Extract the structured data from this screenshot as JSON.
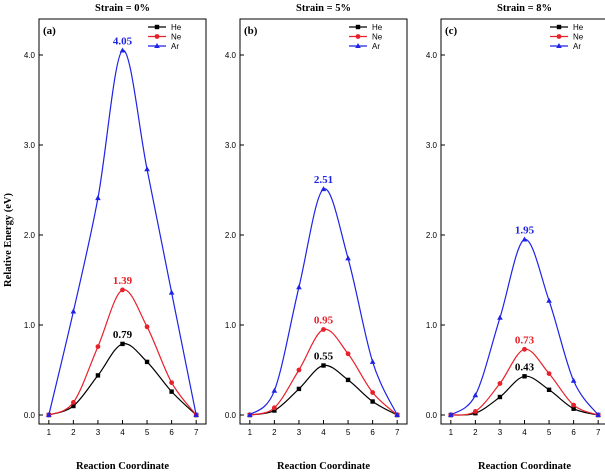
{
  "figure": {
    "ylabel": "Relative Energy (eV)",
    "xlabel": "Reaction Coordinate"
  },
  "chart_data": [
    {
      "type": "line",
      "title": "Strain = 0%",
      "panel_label": "(a)",
      "xlabel": "Reaction Coordinate",
      "ylabel": "Relative Energy (eV)",
      "xlim": [
        0.6,
        7.4
      ],
      "ylim": [
        -0.1,
        4.4
      ],
      "x_ticks": [
        1,
        2,
        3,
        4,
        5,
        6,
        7
      ],
      "y_ticks": [
        "0.0",
        "1.0",
        "2.0",
        "3.0",
        "4.0"
      ],
      "legend_position": "top-right",
      "x": [
        1,
        2,
        3,
        4,
        5,
        6,
        7
      ],
      "series": [
        {
          "name": "He",
          "color": "#000000",
          "marker": "square",
          "values": [
            0,
            0.1,
            0.44,
            0.79,
            0.59,
            0.26,
            0
          ]
        },
        {
          "name": "Ne",
          "color": "#e8202a",
          "marker": "circle",
          "values": [
            0,
            0.14,
            0.76,
            1.39,
            0.98,
            0.36,
            0
          ]
        },
        {
          "name": "Ar",
          "color": "#1f23e6",
          "marker": "triangle",
          "values": [
            0,
            1.15,
            2.41,
            4.05,
            2.73,
            1.36,
            0
          ]
        }
      ],
      "annotations": [
        {
          "text": "4.05",
          "series": "Ar",
          "x": 4,
          "y": 4.05,
          "color": "#1f23e6"
        },
        {
          "text": "1.39",
          "series": "Ne",
          "x": 4,
          "y": 1.39,
          "color": "#e8202a"
        },
        {
          "text": "0.79",
          "series": "He",
          "x": 4,
          "y": 0.79,
          "color": "#000000"
        }
      ]
    },
    {
      "type": "line",
      "title": "Strain = 5%",
      "panel_label": "(b)",
      "xlabel": "Reaction Coordinate",
      "ylabel": "Relative Energy (eV)",
      "xlim": [
        0.6,
        7.4
      ],
      "ylim": [
        -0.1,
        4.4
      ],
      "x_ticks": [
        1,
        2,
        3,
        4,
        5,
        6,
        7
      ],
      "y_ticks": [
        "0.0",
        "1.0",
        "2.0",
        "3.0",
        "4.0"
      ],
      "legend_position": "top-right",
      "x": [
        1,
        2,
        3,
        4,
        5,
        6,
        7
      ],
      "series": [
        {
          "name": "He",
          "color": "#000000",
          "marker": "square",
          "values": [
            0,
            0.05,
            0.29,
            0.55,
            0.39,
            0.15,
            0
          ]
        },
        {
          "name": "Ne",
          "color": "#e8202a",
          "marker": "circle",
          "values": [
            0,
            0.08,
            0.5,
            0.95,
            0.68,
            0.25,
            0
          ]
        },
        {
          "name": "Ar",
          "color": "#1f23e6",
          "marker": "triangle",
          "values": [
            0,
            0.27,
            1.42,
            2.51,
            1.74,
            0.59,
            0
          ]
        }
      ],
      "annotations": [
        {
          "text": "2.51",
          "series": "Ar",
          "x": 4,
          "y": 2.51,
          "color": "#1f23e6"
        },
        {
          "text": "0.95",
          "series": "Ne",
          "x": 4,
          "y": 0.95,
          "color": "#e8202a"
        },
        {
          "text": "0.55",
          "series": "He",
          "x": 4,
          "y": 0.55,
          "color": "#000000"
        }
      ]
    },
    {
      "type": "line",
      "title": "Strain = 8%",
      "panel_label": "(c)",
      "xlabel": "Reaction Coordinate",
      "ylabel": "Relative Energy (eV)",
      "xlim": [
        0.6,
        7.4
      ],
      "ylim": [
        -0.1,
        4.4
      ],
      "x_ticks": [
        1,
        2,
        3,
        4,
        5,
        6,
        7
      ],
      "y_ticks": [
        "0.0",
        "1.0",
        "2.0",
        "3.0",
        "4.0"
      ],
      "legend_position": "top-right",
      "x": [
        1,
        2,
        3,
        4,
        5,
        6,
        7
      ],
      "series": [
        {
          "name": "He",
          "color": "#000000",
          "marker": "square",
          "values": [
            0,
            0.02,
            0.2,
            0.43,
            0.28,
            0.07,
            0
          ]
        },
        {
          "name": "Ne",
          "color": "#e8202a",
          "marker": "circle",
          "values": [
            0,
            0.04,
            0.35,
            0.73,
            0.46,
            0.11,
            0
          ]
        },
        {
          "name": "Ar",
          "color": "#1f23e6",
          "marker": "triangle",
          "values": [
            0,
            0.22,
            1.08,
            1.95,
            1.27,
            0.38,
            0
          ]
        }
      ],
      "annotations": [
        {
          "text": "1.95",
          "series": "Ar",
          "x": 4,
          "y": 1.95,
          "color": "#1f23e6"
        },
        {
          "text": "0.73",
          "series": "Ne",
          "x": 4,
          "y": 0.73,
          "color": "#e8202a"
        },
        {
          "text": "0.43",
          "series": "He",
          "x": 4,
          "y": 0.43,
          "color": "#000000"
        }
      ]
    }
  ]
}
